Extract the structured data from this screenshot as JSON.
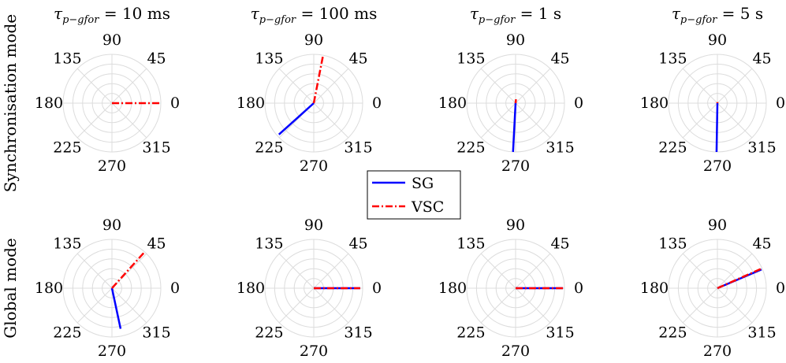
{
  "row_labels": [
    "Synchronisation mode",
    "Global mode"
  ],
  "column_titles": [
    {
      "var": "τ",
      "sub": "p−gfor",
      "rest": " = 10 ms"
    },
    {
      "var": "τ",
      "sub": "p−gfor",
      "rest": " = 100 ms"
    },
    {
      "var": "τ",
      "sub": "p−gfor",
      "rest": " = 1 s"
    },
    {
      "var": "τ",
      "sub": "p−gfor",
      "rest": " = 5 s"
    }
  ],
  "angle_ticks": [
    "0",
    "45",
    "90",
    "135",
    "180",
    "225",
    "270",
    "315"
  ],
  "legend": {
    "entries": [
      {
        "name": "SG",
        "color": "#0000ff",
        "style": "solid"
      },
      {
        "name": "VSC",
        "color": "#ff0000",
        "style": "dashdot"
      }
    ]
  },
  "chart_data": [
    {
      "type": "polar",
      "row": "Synchronisation mode",
      "column": "τ_p−gfor = 10 ms",
      "rlim": [
        0,
        1
      ],
      "grid": true,
      "series": [
        {
          "name": "SG",
          "angle_deg": 0,
          "magnitude": 0
        },
        {
          "name": "VSC",
          "angle_deg": 0,
          "magnitude": 1
        }
      ]
    },
    {
      "type": "polar",
      "row": "Synchronisation mode",
      "column": "τ_p−gfor = 100 ms",
      "rlim": [
        0,
        1
      ],
      "grid": true,
      "series": [
        {
          "name": "SG",
          "angle_deg": 222,
          "magnitude": 0.96
        },
        {
          "name": "VSC",
          "angle_deg": 79,
          "magnitude": 1
        }
      ]
    },
    {
      "type": "polar",
      "row": "Synchronisation mode",
      "column": "τ_p−gfor = 1 s",
      "rlim": [
        0,
        1
      ],
      "grid": true,
      "series": [
        {
          "name": "SG",
          "angle_deg": 267,
          "magnitude": 1
        },
        {
          "name": "VSC",
          "angle_deg": 85,
          "magnitude": 0.08
        }
      ]
    },
    {
      "type": "polar",
      "row": "Synchronisation mode",
      "column": "τ_p−gfor = 5 s",
      "rlim": [
        0,
        1
      ],
      "grid": true,
      "series": [
        {
          "name": "SG",
          "angle_deg": 269,
          "magnitude": 1
        },
        {
          "name": "VSC",
          "angle_deg": 90,
          "magnitude": 0.02
        }
      ]
    },
    {
      "type": "polar",
      "row": "Global mode",
      "column": "τ_p−gfor = 10 ms",
      "rlim": [
        0,
        1
      ],
      "grid": true,
      "series": [
        {
          "name": "SG",
          "angle_deg": 282,
          "magnitude": 0.85
        },
        {
          "name": "VSC",
          "angle_deg": 48,
          "magnitude": 1
        }
      ]
    },
    {
      "type": "polar",
      "row": "Global mode",
      "column": "τ_p−gfor = 100 ms",
      "rlim": [
        0,
        1
      ],
      "grid": true,
      "series": [
        {
          "name": "SG",
          "angle_deg": 0,
          "magnitude": 0.95
        },
        {
          "name": "VSC",
          "angle_deg": 0,
          "magnitude": 0.95
        }
      ]
    },
    {
      "type": "polar",
      "row": "Global mode",
      "column": "τ_p−gfor = 1 s",
      "rlim": [
        0,
        1
      ],
      "grid": true,
      "series": [
        {
          "name": "SG",
          "angle_deg": 0,
          "magnitude": 0.97
        },
        {
          "name": "VSC",
          "angle_deg": 0,
          "magnitude": 0.97
        }
      ]
    },
    {
      "type": "polar",
      "row": "Global mode",
      "column": "τ_p−gfor = 5 s",
      "rlim": [
        0,
        1
      ],
      "grid": true,
      "series": [
        {
          "name": "SG",
          "angle_deg": 23,
          "magnitude": 0.98
        },
        {
          "name": "VSC",
          "angle_deg": 24,
          "magnitude": 1
        }
      ]
    }
  ]
}
